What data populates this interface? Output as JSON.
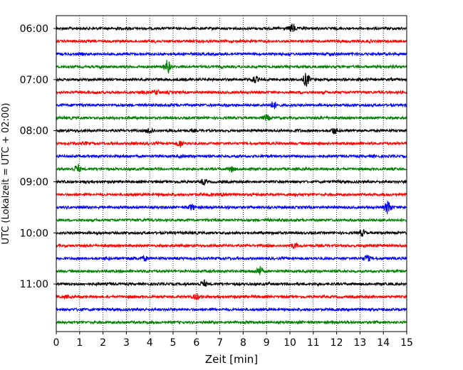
{
  "chart_data": {
    "type": "line",
    "title": "",
    "xlabel": "Zeit  [min]",
    "ylabel": "UTC (Lokalzeit = UTC + 02:00)",
    "xlim": [
      0,
      15
    ],
    "x_ticks": [
      "0",
      "1",
      "2",
      "3",
      "4",
      "5",
      "6",
      "7",
      "8",
      "9",
      "10",
      "11",
      "12",
      "13",
      "14",
      "15"
    ],
    "y_ticks": [
      "06:00",
      "07:00",
      "08:00",
      "09:00",
      "10:00",
      "11:00"
    ],
    "grid": "vertical dotted at each minute",
    "legend": "none",
    "trace_interval_minutes": 15,
    "start_time_utc": "06:00",
    "end_time_utc": "11:45",
    "trace_colors": [
      "#000000",
      "#ff0000",
      "#0000ff",
      "#008000"
    ],
    "events": [
      {
        "trace": "06:00",
        "minute": 10.1,
        "strength": 0.6
      },
      {
        "trace": "06:45",
        "minute": 4.75,
        "strength": 1.0
      },
      {
        "trace": "07:00",
        "minute": 10.7,
        "strength": 1.0
      },
      {
        "trace": "07:00",
        "minute": 8.5,
        "strength": 0.5
      },
      {
        "trace": "07:15",
        "minute": 4.3,
        "strength": 0.3
      },
      {
        "trace": "07:30",
        "minute": 9.3,
        "strength": 0.5
      },
      {
        "trace": "07:45",
        "minute": 9.0,
        "strength": 0.4
      },
      {
        "trace": "08:00",
        "minute": 4.0,
        "strength": 0.45
      },
      {
        "trace": "08:00",
        "minute": 11.9,
        "strength": 0.45
      },
      {
        "trace": "08:15",
        "minute": 5.3,
        "strength": 0.5
      },
      {
        "trace": "08:45",
        "minute": 0.9,
        "strength": 0.6
      },
      {
        "trace": "08:45",
        "minute": 7.5,
        "strength": 0.4
      },
      {
        "trace": "09:00",
        "minute": 6.3,
        "strength": 0.35
      },
      {
        "trace": "09:15",
        "minute": 7.2,
        "strength": 0.3
      },
      {
        "trace": "09:30",
        "minute": 14.2,
        "strength": 1.0
      },
      {
        "trace": "09:30",
        "minute": 5.8,
        "strength": 0.4
      },
      {
        "trace": "10:00",
        "minute": 13.1,
        "strength": 0.45
      },
      {
        "trace": "10:15",
        "minute": 10.2,
        "strength": 0.35
      },
      {
        "trace": "10:30",
        "minute": 13.3,
        "strength": 0.45
      },
      {
        "trace": "10:30",
        "minute": 3.8,
        "strength": 0.3
      },
      {
        "trace": "10:45",
        "minute": 8.7,
        "strength": 0.7
      },
      {
        "trace": "11:00",
        "minute": 6.3,
        "strength": 0.5
      },
      {
        "trace": "11:15",
        "minute": 6.0,
        "strength": 0.4
      }
    ]
  }
}
